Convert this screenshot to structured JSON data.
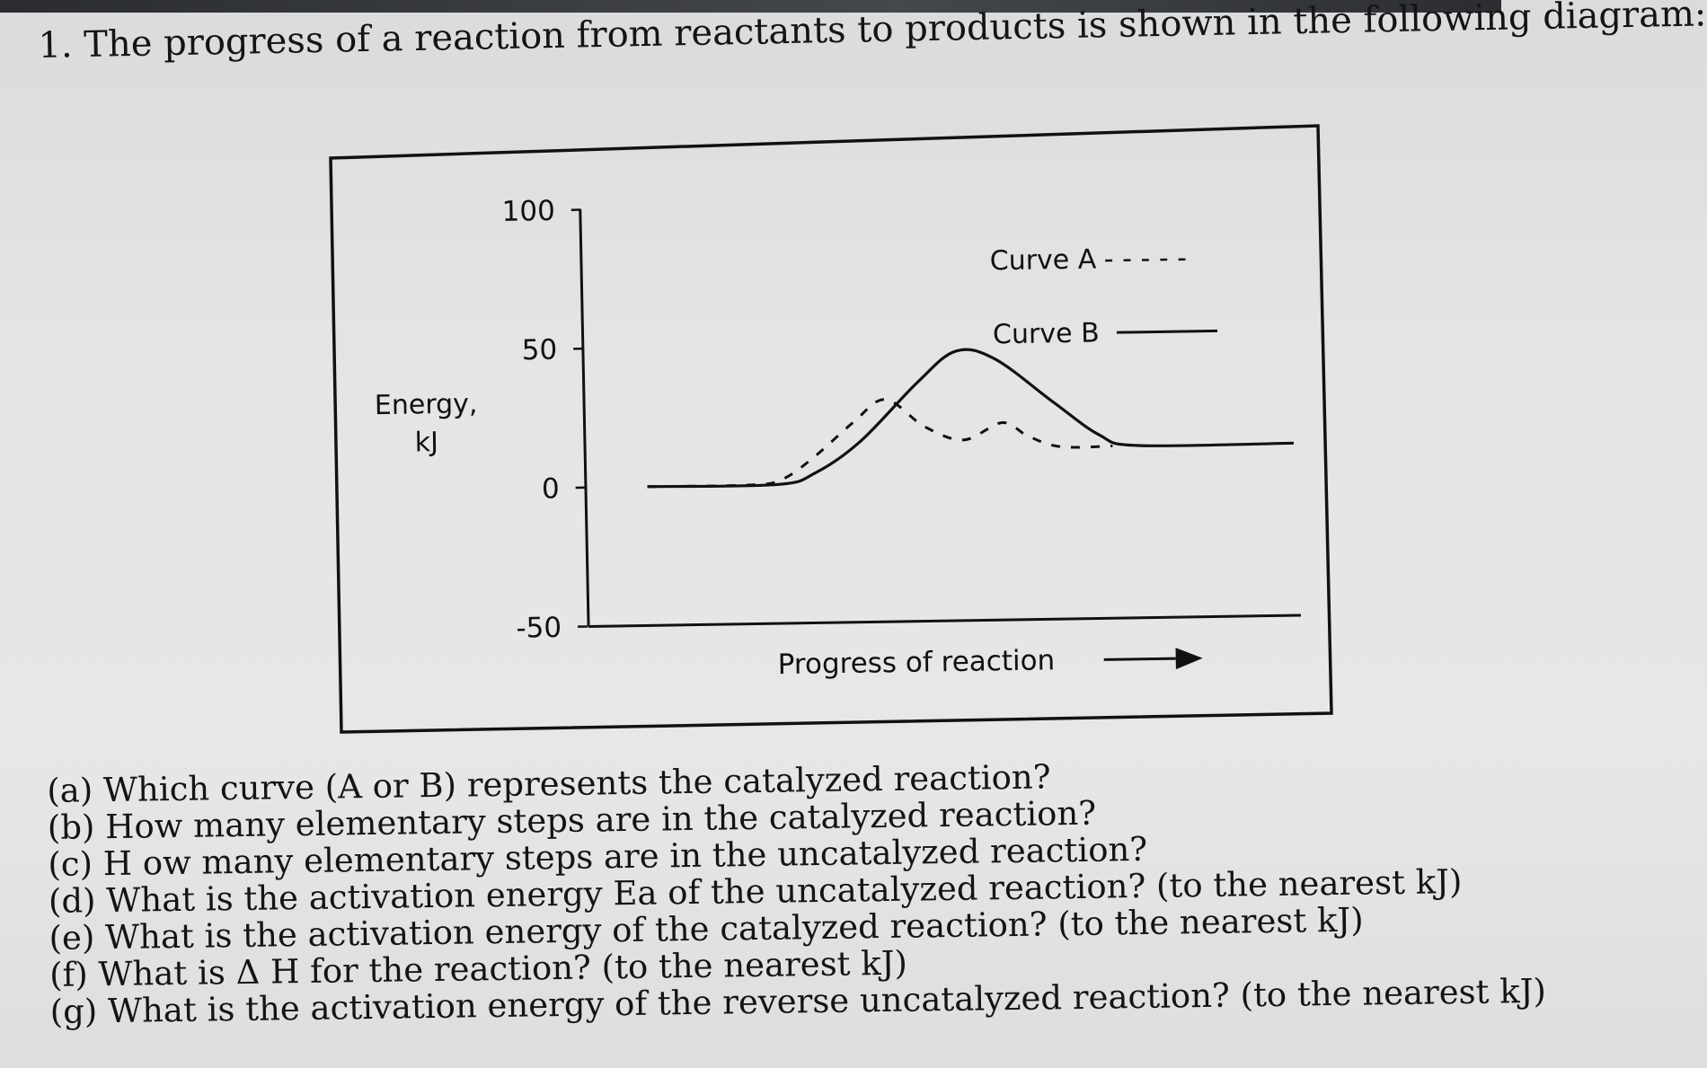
{
  "question": {
    "title": "1. The progress of a reaction from reactants to products is shown in the following diagram:",
    "parts": [
      "(a) Which curve (A or B) represents the catalyzed reaction?",
      "(b) How many elementary steps are in the catalyzed reaction?",
      "(c) H ow many elementary steps are in the uncatalyzed reaction?",
      "(d) What is the activation energy Ea of the uncatalyzed reaction? (to the nearest kJ)",
      "(e) What is the activation energy of the catalyzed reaction? (to the nearest kJ)",
      "(f) What is Δ H for the reaction? (to the nearest kJ)",
      "(g) What is the activation energy of the reverse uncatalyzed reaction? (to the nearest kJ)"
    ]
  },
  "chart_data": {
    "type": "line",
    "title": "",
    "ylabel": "Energy,\nkJ",
    "xlabel": "Progress of reaction",
    "yticks": [
      100,
      50,
      0,
      -50
    ],
    "ylim": [
      -50,
      100
    ],
    "xlim": [
      0,
      10
    ],
    "legend_position": "top-right",
    "series": [
      {
        "name": "Curve A",
        "style": "dashed",
        "points": [
          [
            0,
            0
          ],
          [
            1.6,
            0
          ],
          [
            2.1,
            2
          ],
          [
            2.6,
            10
          ],
          [
            3.2,
            22
          ],
          [
            3.7,
            30
          ],
          [
            4.3,
            20
          ],
          [
            4.9,
            15
          ],
          [
            5.5,
            21
          ],
          [
            5.9,
            16
          ],
          [
            6.4,
            12
          ],
          [
            7.2,
            12
          ]
        ]
      },
      {
        "name": "Curve B",
        "style": "solid",
        "points": [
          [
            0,
            0
          ],
          [
            2.0,
            0
          ],
          [
            2.6,
            4
          ],
          [
            3.3,
            15
          ],
          [
            4.2,
            36
          ],
          [
            4.8,
            47
          ],
          [
            5.4,
            44
          ],
          [
            6.3,
            28
          ],
          [
            7.0,
            16
          ],
          [
            7.6,
            12
          ],
          [
            10,
            12
          ]
        ]
      }
    ],
    "legend": [
      {
        "label": "Curve A",
        "dash_text": "- - - - -"
      },
      {
        "label": "Curve B"
      }
    ],
    "colors": {
      "line": "#111111",
      "frame": "#111111"
    }
  }
}
